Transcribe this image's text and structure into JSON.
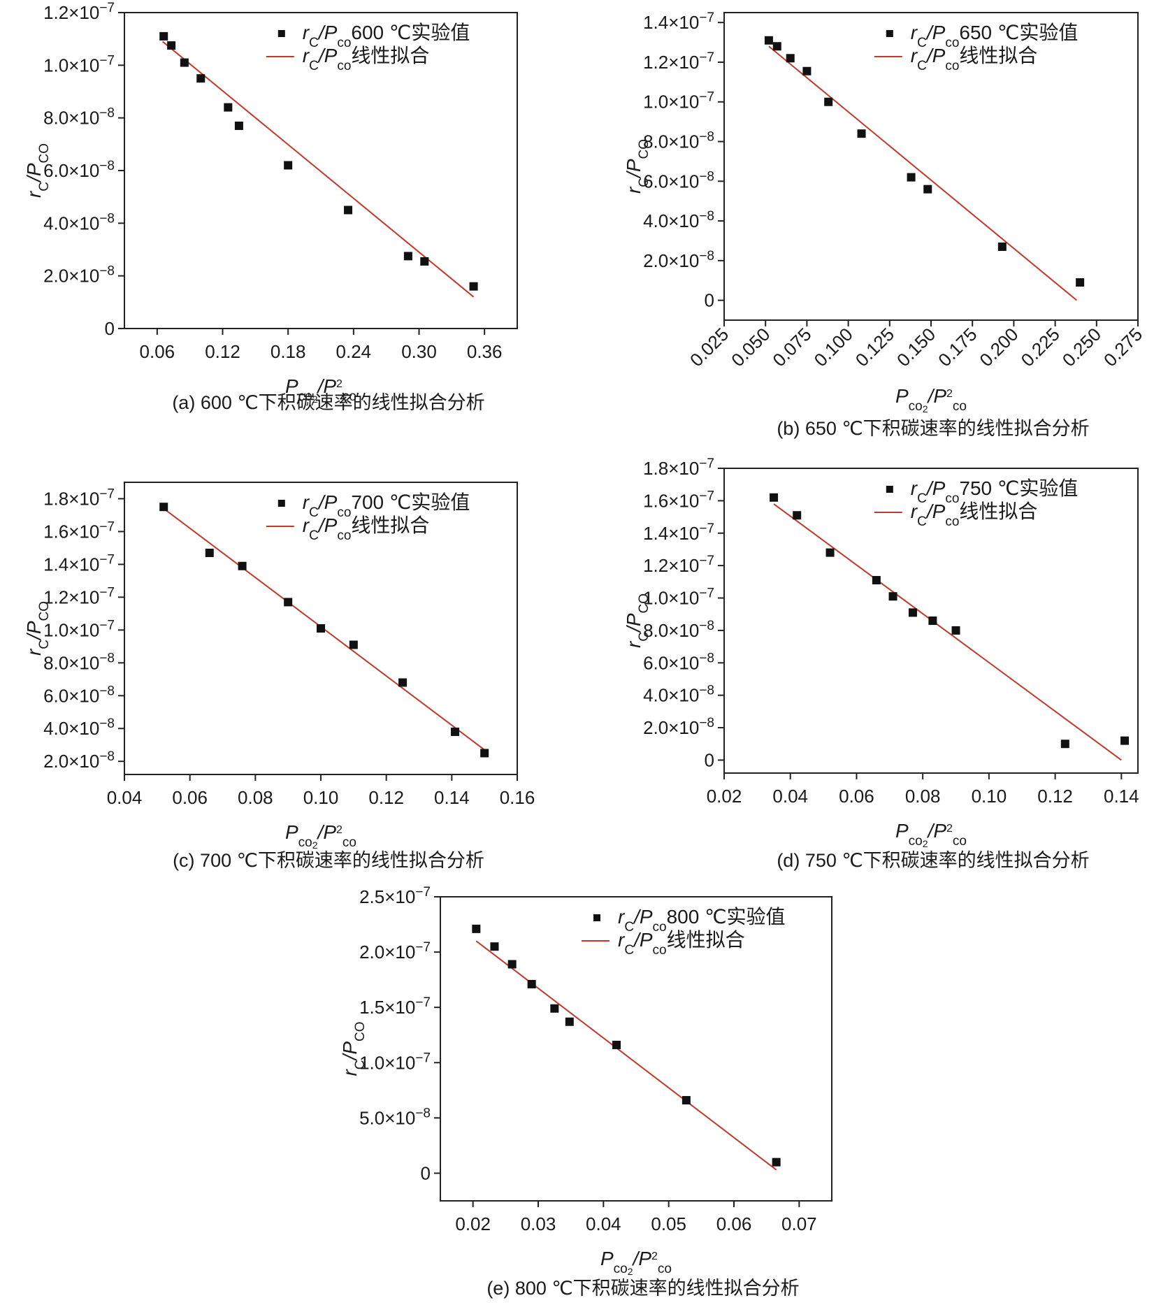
{
  "legend_point_suffix": "实验值",
  "legend_line_suffix": "线性拟合",
  "point_color": "#111111",
  "fit_color": "#c0392b",
  "chart_data": [
    {
      "id": "a",
      "type": "scatter",
      "temperature_label": "600 ℃",
      "caption": "(a) 600 ℃下积碳速率的线性拟合分析",
      "ylabel": "rC/PCO",
      "xlabel": "Pco2/P2co",
      "x_ticks": [
        "0.06",
        "0.12",
        "0.18",
        "0.24",
        "0.30",
        "0.36"
      ],
      "y_ticks": [
        {
          "v": 0,
          "label": "0"
        },
        {
          "v": 2e-08,
          "label": "2.0×10−8"
        },
        {
          "v": 4e-08,
          "label": "4.0×10−8"
        },
        {
          "v": 6e-08,
          "label": "6.0×10−8"
        },
        {
          "v": 8e-08,
          "label": "8.0×10−8"
        },
        {
          "v": 1e-07,
          "label": "1.0×10−7"
        },
        {
          "v": 1.2e-07,
          "label": "1.2×10−7"
        }
      ],
      "xlim": [
        0.03,
        0.39
      ],
      "ylim": [
        0,
        1.2e-07
      ],
      "points": [
        [
          0.066,
          1.11e-07
        ],
        [
          0.073,
          1.075e-07
        ],
        [
          0.085,
          1.01e-07
        ],
        [
          0.1,
          9.5e-08
        ],
        [
          0.125,
          8.4e-08
        ],
        [
          0.135,
          7.7e-08
        ],
        [
          0.18,
          6.2e-08
        ],
        [
          0.235,
          4.5e-08
        ],
        [
          0.29,
          2.75e-08
        ],
        [
          0.305,
          2.55e-08
        ],
        [
          0.35,
          1.6e-08
        ]
      ],
      "fit": [
        [
          0.065,
          1.09e-07
        ],
        [
          0.35,
          1.2e-08
        ]
      ]
    },
    {
      "id": "b",
      "type": "scatter",
      "temperature_label": "650 ℃",
      "caption": "(b) 650 ℃下积碳速率的线性拟合分析",
      "ylabel": "rC/PCO",
      "xlabel": "Pco2/P2co",
      "x_ticks": [
        "0.025",
        "0.050",
        "0.075",
        "0.100",
        "0.125",
        "0.150",
        "0.175",
        "0.200",
        "0.225",
        "0.250",
        "0.275"
      ],
      "y_ticks": [
        {
          "v": 0,
          "label": "0"
        },
        {
          "v": 2e-08,
          "label": "2.0×10−8"
        },
        {
          "v": 4e-08,
          "label": "4.0×10−8"
        },
        {
          "v": 6e-08,
          "label": "6.0×10−8"
        },
        {
          "v": 8e-08,
          "label": "8.0×10−8"
        },
        {
          "v": 1e-07,
          "label": "1.0×10−7"
        },
        {
          "v": 1.2e-07,
          "label": "1.2×10−7"
        },
        {
          "v": 1.4e-07,
          "label": "1.4×10−7"
        }
      ],
      "xlim": [
        0.025,
        0.275
      ],
      "ylim": [
        -1e-08,
        1.45e-07
      ],
      "points": [
        [
          0.052,
          1.31e-07
        ],
        [
          0.057,
          1.28e-07
        ],
        [
          0.065,
          1.22e-07
        ],
        [
          0.075,
          1.155e-07
        ],
        [
          0.088,
          1e-07
        ],
        [
          0.108,
          8.4e-08
        ],
        [
          0.138,
          6.2e-08
        ],
        [
          0.148,
          5.6e-08
        ],
        [
          0.193,
          2.7e-08
        ],
        [
          0.24,
          9e-09
        ]
      ],
      "fit": [
        [
          0.052,
          1.28e-07
        ],
        [
          0.238,
          0
        ]
      ]
    },
    {
      "id": "c",
      "type": "scatter",
      "temperature_label": "700 ℃",
      "caption": "(c) 700 ℃下积碳速率的线性拟合分析",
      "ylabel": "rC/PCO",
      "xlabel": "Pco2/P2co",
      "x_ticks": [
        "0.04",
        "0.06",
        "0.08",
        "0.10",
        "0.12",
        "0.14",
        "0.16"
      ],
      "y_ticks": [
        {
          "v": 2e-08,
          "label": "2.0×10−8"
        },
        {
          "v": 4e-08,
          "label": "4.0×10−8"
        },
        {
          "v": 6e-08,
          "label": "6.0×10−8"
        },
        {
          "v": 8e-08,
          "label": "8.0×10−8"
        },
        {
          "v": 1e-07,
          "label": "1.0×10−7"
        },
        {
          "v": 1.2e-07,
          "label": "1.2×10−7"
        },
        {
          "v": 1.4e-07,
          "label": "1.4×10−7"
        },
        {
          "v": 1.6e-07,
          "label": "1.6×10−7"
        },
        {
          "v": 1.8e-07,
          "label": "1.8×10−7"
        }
      ],
      "xlim": [
        0.04,
        0.16
      ],
      "ylim": [
        1.2e-08,
        1.9e-07
      ],
      "points": [
        [
          0.052,
          1.75e-07
        ],
        [
          0.066,
          1.47e-07
        ],
        [
          0.076,
          1.39e-07
        ],
        [
          0.09,
          1.17e-07
        ],
        [
          0.1,
          1.01e-07
        ],
        [
          0.11,
          9.1e-08
        ],
        [
          0.125,
          6.8e-08
        ],
        [
          0.141,
          3.8e-08
        ],
        [
          0.15,
          2.5e-08
        ]
      ],
      "fit": [
        [
          0.052,
          1.74e-07
        ],
        [
          0.15,
          2.7e-08
        ]
      ]
    },
    {
      "id": "d",
      "type": "scatter",
      "temperature_label": "750 ℃",
      "caption": "(d) 750 ℃下积碳速率的线性拟合分析",
      "ylabel": "rC/PCO",
      "xlabel": "Pco2/P2co",
      "x_ticks": [
        "0.02",
        "0.04",
        "0.06",
        "0.08",
        "0.10",
        "0.12",
        "0.14"
      ],
      "y_ticks": [
        {
          "v": 0,
          "label": "0"
        },
        {
          "v": 2e-08,
          "label": "2.0×10−8"
        },
        {
          "v": 4e-08,
          "label": "4.0×10−8"
        },
        {
          "v": 6e-08,
          "label": "6.0×10−8"
        },
        {
          "v": 8e-08,
          "label": "8.0×10−8"
        },
        {
          "v": 1e-07,
          "label": "1.0×10−7"
        },
        {
          "v": 1.2e-07,
          "label": "1.2×10−7"
        },
        {
          "v": 1.4e-07,
          "label": "1.4×10−7"
        },
        {
          "v": 1.6e-07,
          "label": "1.6×10−7"
        },
        {
          "v": 1.8e-07,
          "label": "1.8×10−7"
        }
      ],
      "xlim": [
        0.02,
        0.145
      ],
      "ylim": [
        -8e-09,
        1.8e-07
      ],
      "points": [
        [
          0.035,
          1.62e-07
        ],
        [
          0.042,
          1.51e-07
        ],
        [
          0.052,
          1.28e-07
        ],
        [
          0.066,
          1.11e-07
        ],
        [
          0.071,
          1.01e-07
        ],
        [
          0.077,
          9.1e-08
        ],
        [
          0.083,
          8.6e-08
        ],
        [
          0.09,
          8e-08
        ],
        [
          0.123,
          1e-08
        ],
        [
          0.141,
          1.2e-08
        ]
      ],
      "fit": [
        [
          0.035,
          1.58e-07
        ],
        [
          0.14,
          0
        ]
      ]
    },
    {
      "id": "e",
      "type": "scatter",
      "temperature_label": "800 ℃",
      "caption": "(e) 800 ℃下积碳速率的线性拟合分析",
      "ylabel": "rC/PCO",
      "xlabel": "Pco2/P2co",
      "x_ticks": [
        "0.02",
        "0.03",
        "0.04",
        "0.05",
        "0.06",
        "0.07"
      ],
      "y_ticks": [
        {
          "v": 0,
          "label": "0"
        },
        {
          "v": 5e-08,
          "label": "5.0×10−8"
        },
        {
          "v": 1e-07,
          "label": "1.0×10−7"
        },
        {
          "v": 1.5e-07,
          "label": "1.5×10−7"
        },
        {
          "v": 2e-07,
          "label": "2.0×10−7"
        },
        {
          "v": 2.5e-07,
          "label": "2.5×10−7"
        }
      ],
      "xlim": [
        0.015,
        0.075
      ],
      "ylim": [
        -2.5e-08,
        2.5e-07
      ],
      "points": [
        [
          0.0205,
          2.21e-07
        ],
        [
          0.0233,
          2.05e-07
        ],
        [
          0.026,
          1.89e-07
        ],
        [
          0.029,
          1.71e-07
        ],
        [
          0.0325,
          1.49e-07
        ],
        [
          0.0348,
          1.37e-07
        ],
        [
          0.042,
          1.16e-07
        ],
        [
          0.0527,
          6.6e-08
        ],
        [
          0.0665,
          1e-08
        ]
      ],
      "fit": [
        [
          0.0205,
          2.1e-07
        ],
        [
          0.0665,
          3e-09
        ]
      ]
    }
  ]
}
